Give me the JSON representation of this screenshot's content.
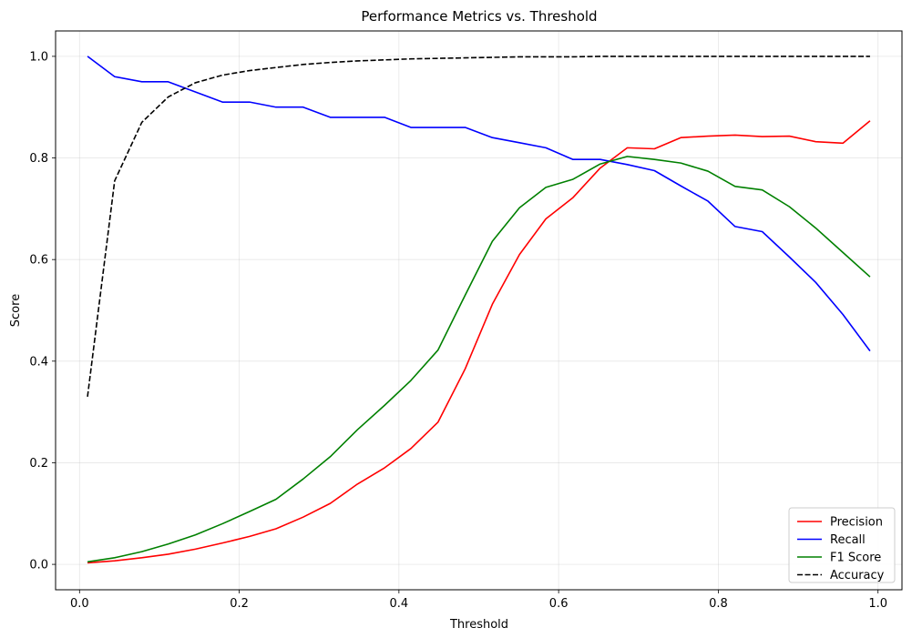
{
  "chart_data": {
    "type": "line",
    "title": "Performance Metrics vs. Threshold",
    "xlabel": "Threshold",
    "ylabel": "Score",
    "xlim": [
      -0.03,
      1.03
    ],
    "ylim": [
      -0.05,
      1.05
    ],
    "xticks": [
      "0.0",
      "0.2",
      "0.4",
      "0.6",
      "0.8",
      "1.0"
    ],
    "yticks": [
      "0.0",
      "0.2",
      "0.4",
      "0.6",
      "0.8",
      "1.0"
    ],
    "grid": true,
    "legend_position": "bottom-right",
    "x": [
      0.01,
      0.044,
      0.078,
      0.111,
      0.145,
      0.179,
      0.213,
      0.246,
      0.28,
      0.314,
      0.348,
      0.382,
      0.415,
      0.449,
      0.483,
      0.517,
      0.551,
      0.584,
      0.618,
      0.652,
      0.686,
      0.72,
      0.753,
      0.787,
      0.821,
      0.855,
      0.889,
      0.922,
      0.956,
      0.99
    ],
    "series": [
      {
        "name": "Precision",
        "color": "#ff0000",
        "dash": "solid",
        "values": [
          0.003,
          0.007,
          0.013,
          0.02,
          0.03,
          0.042,
          0.055,
          0.07,
          0.093,
          0.12,
          0.158,
          0.19,
          0.228,
          0.28,
          0.385,
          0.512,
          0.61,
          0.68,
          0.722,
          0.78,
          0.82,
          0.818,
          0.84,
          0.843,
          0.845,
          0.842,
          0.843,
          0.832,
          0.829,
          0.873
        ]
      },
      {
        "name": "Recall",
        "color": "#0000ff",
        "dash": "solid",
        "values": [
          1.0,
          0.96,
          0.95,
          0.95,
          0.93,
          0.91,
          0.91,
          0.9,
          0.9,
          0.88,
          0.88,
          0.88,
          0.86,
          0.86,
          0.86,
          0.84,
          0.83,
          0.82,
          0.797,
          0.797,
          0.787,
          0.775,
          0.745,
          0.715,
          0.665,
          0.655,
          0.605,
          0.555,
          0.492,
          0.42
        ]
      },
      {
        "name": "F1 Score",
        "color": "#008000",
        "dash": "solid",
        "values": [
          0.005,
          0.013,
          0.025,
          0.04,
          0.058,
          0.08,
          0.104,
          0.128,
          0.168,
          0.212,
          0.265,
          0.313,
          0.362,
          0.422,
          0.53,
          0.636,
          0.702,
          0.742,
          0.758,
          0.788,
          0.803,
          0.797,
          0.79,
          0.774,
          0.744,
          0.737,
          0.704,
          0.662,
          0.614,
          0.566
        ]
      },
      {
        "name": "Accuracy",
        "color": "#000000",
        "dash": "dashed",
        "values": [
          0.33,
          0.755,
          0.87,
          0.92,
          0.948,
          0.963,
          0.972,
          0.978,
          0.984,
          0.988,
          0.991,
          0.993,
          0.995,
          0.996,
          0.997,
          0.998,
          0.999,
          0.999,
          0.999,
          1.0,
          1.0,
          1.0,
          1.0,
          1.0,
          1.0,
          1.0,
          1.0,
          1.0,
          1.0,
          1.0
        ]
      }
    ]
  }
}
